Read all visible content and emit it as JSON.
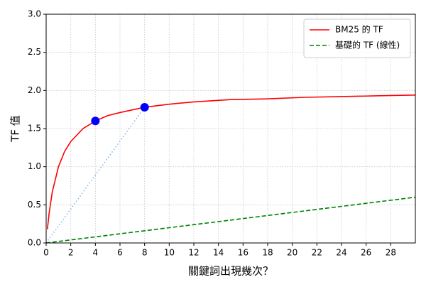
{
  "chart_data": {
    "type": "line",
    "xlabel": "關鍵詞出現幾次？",
    "ylabel": "TF 值",
    "xlim": [
      0,
      30
    ],
    "xticks": [
      0,
      2,
      4,
      6,
      8,
      10,
      12,
      14,
      16,
      18,
      20,
      22,
      24,
      26,
      28
    ],
    "ylim": [
      0,
      3
    ],
    "yticks": [
      {
        "value": 0,
        "label": "0.0"
      },
      {
        "value": 0.5,
        "label": "0.5"
      },
      {
        "value": 1,
        "label": "1.0"
      },
      {
        "value": 1.5,
        "label": "1.5"
      },
      {
        "value": 2,
        "label": "2.0"
      },
      {
        "value": 2.5,
        "label": "2.5"
      },
      {
        "value": 3,
        "label": "3.0"
      }
    ],
    "grid": true,
    "legend": "upper right",
    "series": [
      {
        "name": "BM25 的 TF",
        "color": "#ff0000",
        "dash": "solid",
        "x": [
          0.1,
          0.25,
          0.5,
          1,
          1.5,
          2,
          3,
          4,
          5,
          6,
          8,
          10,
          12,
          15,
          18,
          21,
          24,
          27,
          30
        ],
        "values": [
          0.18,
          0.4,
          0.67,
          1.0,
          1.2,
          1.33,
          1.5,
          1.6,
          1.67,
          1.71,
          1.78,
          1.82,
          1.85,
          1.88,
          1.89,
          1.91,
          1.92,
          1.93,
          1.94
        ]
      },
      {
        "name": "基礎的 TF (線性)",
        "color": "#008000",
        "dash": "dashed",
        "x": [
          0,
          30
        ],
        "values": [
          0,
          0.6
        ]
      }
    ],
    "guide": {
      "color": "#7fb2e5",
      "x": [
        0,
        8
      ],
      "values": [
        0,
        1.78
      ]
    },
    "markers": {
      "color": "#0000ff",
      "x": [
        4,
        8
      ],
      "values": [
        1.6,
        1.78
      ]
    }
  }
}
